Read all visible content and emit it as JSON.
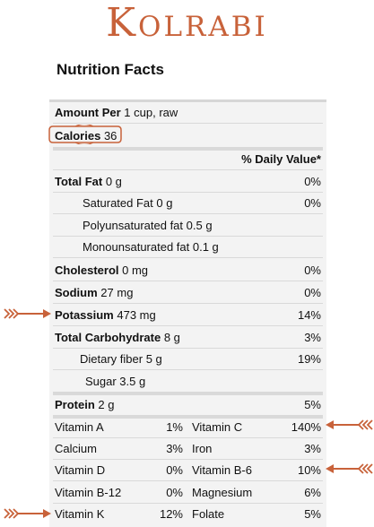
{
  "title": "Kolrabi",
  "nutrition_title": "Nutrition Facts",
  "amount": {
    "label": "Amount Per",
    "value": "1 cup, raw"
  },
  "calories": {
    "label": "Calories",
    "value": "36"
  },
  "daily_value_header": "% Daily Value*",
  "nutrients": [
    {
      "label": "Total Fat",
      "amount": "0 g",
      "pct": "0%"
    },
    {
      "label": "Saturated Fat 0 g",
      "pct": "0%"
    },
    {
      "label": "Polyunsaturated fat 0.5 g"
    },
    {
      "label": "Monounsaturated fat 0.1 g"
    },
    {
      "label": "Cholesterol",
      "amount": "0 mg",
      "pct": "0%"
    },
    {
      "label": "Sodium",
      "amount": "27 mg",
      "pct": "0%"
    },
    {
      "label": "Potassium",
      "amount": "473 mg",
      "pct": "14%"
    },
    {
      "label": "Total Carbohydrate",
      "amount": "8 g",
      "pct": "3%"
    },
    {
      "label": "Dietary fiber 5 g",
      "pct": "19%"
    },
    {
      "label": "Sugar 3.5 g"
    },
    {
      "label": "Protein",
      "amount": "2 g",
      "pct": "5%"
    }
  ],
  "vitamins": [
    {
      "n1": "Vitamin A",
      "p1": "1%",
      "n2": "Vitamin C",
      "p2": "140%"
    },
    {
      "n1": "Calcium",
      "p1": "3%",
      "n2": "Iron",
      "p2": "3%"
    },
    {
      "n1": "Vitamin D",
      "p1": "0%",
      "n2": "Vitamin B-6",
      "p2": "10%"
    },
    {
      "n1": "Vitamin B-12",
      "p1": "0%",
      "n2": "Magnesium",
      "p2": "6%"
    },
    {
      "n1": "Vitamin K",
      "p1": "12%",
      "n2": "Folate",
      "p2": "5%"
    }
  ],
  "colors": {
    "accent": "#c8623a",
    "panel": "#f3f3f3",
    "divider": "#d9d9d9"
  },
  "icons": [
    "right-arrow-icon",
    "left-arrow-icon",
    "calories-circle-icon"
  ]
}
